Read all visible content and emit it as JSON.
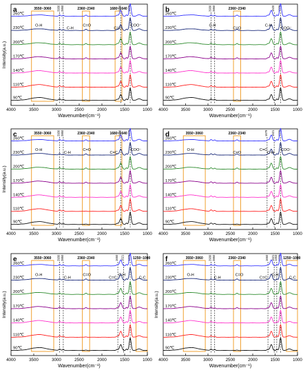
{
  "chart_data": [
    {
      "type": "line",
      "panel": "a",
      "xlabel": "Wavenumber(cm⁻¹)",
      "ylabel": "Intensity(a.u.)",
      "xlim": [
        4000,
        1000
      ],
      "x_ticks": [
        4000,
        3500,
        3000,
        2500,
        2000,
        1500,
        1000
      ],
      "series": [
        {
          "name": "260℃",
          "color": "#3333ff"
        },
        {
          "name": "230℃",
          "color": "#1a2a7a"
        },
        {
          "name": "200℃",
          "color": "#2e8b2e"
        },
        {
          "name": "170℃",
          "color": "#8b008b"
        },
        {
          "name": "140℃",
          "color": "#ff33cc"
        },
        {
          "name": "110℃",
          "color": "#ff2020"
        },
        {
          "name": "90℃",
          "color": "#111111"
        }
      ],
      "regions": [
        {
          "label": "3550~3060",
          "from": 3550,
          "to": 3060
        },
        {
          "label": "2360~2340",
          "from": 2430,
          "to": 2270
        },
        {
          "label": "1680~1640",
          "from": 1710,
          "to": 1560
        }
      ],
      "peak_lines": [
        {
          "label": "2930",
          "x": 2930
        },
        {
          "label": "2850",
          "x": 2850
        },
        {
          "label": "1586",
          "x": 1586
        },
        {
          "label": "1378",
          "x": 1378
        }
      ],
      "annotations": [
        {
          "text": "O-H",
          "x": 3390
        },
        {
          "text": "C-H",
          "x": 2700
        },
        {
          "text": "C=O",
          "x": 2330
        },
        {
          "text": "C=C",
          "x": 1650
        },
        {
          "text": "COO⁻",
          "x": 1250
        }
      ]
    },
    {
      "type": "line",
      "panel": "b",
      "xlabel": "Wavenumber(cm⁻¹)",
      "ylabel": "",
      "xlim": [
        4000,
        1000
      ],
      "x_ticks": [
        4000,
        3500,
        3000,
        2500,
        2000,
        1500,
        1000
      ],
      "series": [
        {
          "name": "260℃",
          "color": "#3333ff"
        },
        {
          "name": "230℃",
          "color": "#1a2a7a"
        },
        {
          "name": "200℃",
          "color": "#2e8b2e"
        },
        {
          "name": "170℃",
          "color": "#8b008b"
        },
        {
          "name": "140℃",
          "color": "#ff33cc"
        },
        {
          "name": "110℃",
          "color": "#ff2020"
        },
        {
          "name": "90℃",
          "color": "#111111"
        }
      ],
      "regions": [
        {
          "label": "2360~2340",
          "from": 2430,
          "to": 2270
        }
      ],
      "peak_lines": [
        {
          "label": "2930",
          "x": 2930
        },
        {
          "label": "2850",
          "x": 2850
        },
        {
          "label": "1520",
          "x": 1520
        },
        {
          "label": "1378",
          "x": 1378
        }
      ],
      "annotations": [
        {
          "text": "C-H",
          "x": 2900
        },
        {
          "text": "C=O",
          "x": 2350
        },
        {
          "text": "C-H",
          "x": 1650
        },
        {
          "text": "COO⁻",
          "x": 1250
        }
      ]
    },
    {
      "type": "line",
      "panel": "c",
      "xlabel": "Wavenumber(cm⁻¹)",
      "ylabel": "Intensity(a.u.)",
      "xlim": [
        4000,
        1000
      ],
      "x_ticks": [
        4000,
        3500,
        3000,
        2500,
        2000,
        1500,
        1000
      ],
      "series": [
        {
          "name": "260℃",
          "color": "#3333ff"
        },
        {
          "name": "230℃",
          "color": "#1a2a7a"
        },
        {
          "name": "200℃",
          "color": "#2e8b2e"
        },
        {
          "name": "170℃",
          "color": "#8b008b"
        },
        {
          "name": "140℃",
          "color": "#ff33cc"
        },
        {
          "name": "110℃",
          "color": "#ff2020"
        },
        {
          "name": "90℃",
          "color": "#111111"
        }
      ],
      "regions": [
        {
          "label": "3550~3060",
          "from": 3550,
          "to": 3060
        },
        {
          "label": "2360~2340",
          "from": 2430,
          "to": 2270
        },
        {
          "label": "1680~1640",
          "from": 1710,
          "to": 1560
        }
      ],
      "peak_lines": [
        {
          "label": "2930",
          "x": 2930
        },
        {
          "label": "2850",
          "x": 2850
        },
        {
          "label": "1586",
          "x": 1586
        },
        {
          "label": "1378",
          "x": 1378
        }
      ],
      "annotations": [
        {
          "text": "O-H",
          "x": 3390
        },
        {
          "text": "C-H",
          "x": 2760
        },
        {
          "text": "C=O",
          "x": 2330
        },
        {
          "text": "C=C",
          "x": 1740
        },
        {
          "text": "COO⁻",
          "x": 1250
        }
      ]
    },
    {
      "type": "line",
      "panel": "d",
      "xlabel": "Wavenumber(cm⁻¹)",
      "ylabel": "",
      "xlim": [
        4000,
        1000
      ],
      "x_ticks": [
        4000,
        3500,
        3000,
        2500,
        2000,
        1500,
        1000
      ],
      "series": [
        {
          "name": "260℃",
          "color": "#3333ff"
        },
        {
          "name": "230℃",
          "color": "#1a2a7a"
        },
        {
          "name": "200℃",
          "color": "#2e8b2e"
        },
        {
          "name": "170℃",
          "color": "#8b008b"
        },
        {
          "name": "140℃",
          "color": "#ff33cc"
        },
        {
          "name": "110℃",
          "color": "#ff2020"
        },
        {
          "name": "90℃",
          "color": "#111111"
        }
      ],
      "regions": [
        {
          "label": "3550~3060",
          "from": 3550,
          "to": 3060
        },
        {
          "label": "2360~2340",
          "from": 2430,
          "to": 2270
        }
      ],
      "peak_lines": [
        {
          "label": "1679",
          "x": 1679
        },
        {
          "label": "1521",
          "x": 1521
        },
        {
          "label": "1378",
          "x": 1378
        }
      ],
      "annotations": [
        {
          "text": "O-H",
          "x": 3390
        },
        {
          "text": "C=O",
          "x": 2350
        },
        {
          "text": "C=C",
          "x": 1760
        },
        {
          "text": "C-H",
          "x": 1600
        },
        {
          "text": "COO⁻",
          "x": 1250
        }
      ]
    },
    {
      "type": "line",
      "panel": "e",
      "xlabel": "Wavenumber(cm⁻¹)",
      "ylabel": "Intensity(a.u.)",
      "xlim": [
        4000,
        1000
      ],
      "x_ticks": [
        4000,
        3500,
        3000,
        2500,
        2000,
        1500,
        1000
      ],
      "series": [
        {
          "name": "260℃",
          "color": "#3333ff"
        },
        {
          "name": "230℃",
          "color": "#1a2a7a"
        },
        {
          "name": "200℃",
          "color": "#2e8b2e"
        },
        {
          "name": "170℃",
          "color": "#8b008b"
        },
        {
          "name": "140℃",
          "color": "#ff33cc"
        },
        {
          "name": "110℃",
          "color": "#ff2020"
        },
        {
          "name": "90℃",
          "color": "#111111"
        }
      ],
      "regions": [
        {
          "label": "3550~3060",
          "from": 3550,
          "to": 3060
        },
        {
          "label": "2360~2340",
          "from": 2430,
          "to": 2270
        },
        {
          "label": "1250~1000",
          "from": 1250,
          "to": 1000
        }
      ],
      "peak_lines": [
        {
          "label": "2930",
          "x": 2930
        },
        {
          "label": "2850",
          "x": 2850
        },
        {
          "label": "1650",
          "x": 1650
        },
        {
          "label": "1521",
          "x": 1521
        },
        {
          "label": "1378",
          "x": 1378
        }
      ],
      "annotations": [
        {
          "text": "O-H",
          "x": 3390
        },
        {
          "text": "C-H",
          "x": 2760
        },
        {
          "text": "C=O",
          "x": 2330
        },
        {
          "text": "C=C",
          "x": 1760
        },
        {
          "text": "C-H",
          "x": 1560
        },
        {
          "text": "C-C",
          "x": 1110
        }
      ]
    },
    {
      "type": "line",
      "panel": "f",
      "xlabel": "Wavenumber(cm⁻¹)",
      "ylabel": "Intensity(a.u.)",
      "xlim": [
        4000,
        1000
      ],
      "x_ticks": [
        4000,
        3500,
        3000,
        2500,
        2000,
        1500,
        1000
      ],
      "series": [
        {
          "name": "260℃",
          "color": "#3333ff"
        },
        {
          "name": "230℃",
          "color": "#1a2a7a"
        },
        {
          "name": "200℃",
          "color": "#2e8b2e"
        },
        {
          "name": "170℃",
          "color": "#8b008b"
        },
        {
          "name": "140℃",
          "color": "#ff33cc"
        },
        {
          "name": "110℃",
          "color": "#ff2020"
        },
        {
          "name": "90℃",
          "color": "#111111"
        }
      ],
      "regions": [
        {
          "label": "3550~3060",
          "from": 3550,
          "to": 3060
        },
        {
          "label": "2360~2340",
          "from": 2430,
          "to": 2270
        },
        {
          "label": "1250~1000",
          "from": 1250,
          "to": 1000
        }
      ],
      "peak_lines": [
        {
          "label": "2930",
          "x": 2930
        },
        {
          "label": "2850",
          "x": 2850
        },
        {
          "label": "1660",
          "x": 1660
        },
        {
          "label": "1521",
          "x": 1521
        },
        {
          "label": "1463",
          "x": 1463
        },
        {
          "label": "1378",
          "x": 1378
        }
      ],
      "annotations": [
        {
          "text": "O-H",
          "x": 3390
        },
        {
          "text": "C-H",
          "x": 2790
        },
        {
          "text": "C=O",
          "x": 2300
        },
        {
          "text": "C=C",
          "x": 1760
        },
        {
          "text": "C-H",
          "x": 1500
        },
        {
          "text": "C-C",
          "x": 1110
        }
      ]
    }
  ]
}
